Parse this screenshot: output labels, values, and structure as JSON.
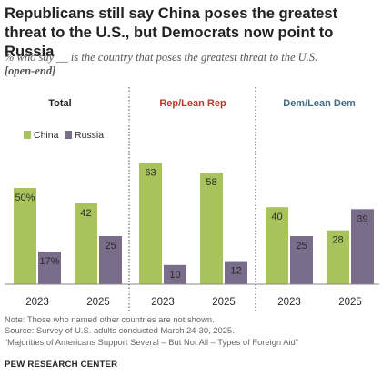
{
  "title": "Republicans still say China poses the greatest threat to the U.S., but Democrats now point to Russia",
  "subtitle": "% who say __ is the country that poses the greatest threat to the U.S.",
  "subtitle_note": "[open-end]",
  "chart_data": {
    "type": "bar",
    "ylim": [
      0,
      70
    ],
    "legend": {
      "position": "top-left of first panel",
      "entries": [
        "China",
        "Russia"
      ]
    },
    "series_colors": {
      "China": "#a8c35b",
      "Russia": "#7a6d8c"
    },
    "panels": [
      {
        "title": "Total",
        "title_color": "#222222",
        "categories": [
          "2023",
          "2025"
        ],
        "series": [
          {
            "name": "China",
            "values": [
              50,
              42
            ],
            "labels": [
              "50%",
              "42"
            ]
          },
          {
            "name": "Russia",
            "values": [
              17,
              25
            ],
            "labels": [
              "17%",
              "25"
            ]
          }
        ]
      },
      {
        "title": "Rep/Lean Rep",
        "title_color": "#b23a2e",
        "categories": [
          "2023",
          "2025"
        ],
        "series": [
          {
            "name": "China",
            "values": [
              63,
              58
            ],
            "labels": [
              "63",
              "58"
            ]
          },
          {
            "name": "Russia",
            "values": [
              10,
              12
            ],
            "labels": [
              "10",
              "12"
            ]
          }
        ]
      },
      {
        "title": "Dem/Lean Dem",
        "title_color": "#3f6b87",
        "categories": [
          "2023",
          "2025"
        ],
        "series": [
          {
            "name": "China",
            "values": [
              40,
              28
            ],
            "labels": [
              "40",
              "28"
            ]
          },
          {
            "name": "Russia",
            "values": [
              25,
              39
            ],
            "labels": [
              "25",
              "39"
            ]
          }
        ]
      }
    ]
  },
  "notes": [
    "Note: Those who named other countries are not shown.",
    "Source: Survey of U.S. adults conducted March 24-30, 2025.",
    "“Majorities of Americans Support Several – But Not All – Types of Foreign Aid”"
  ],
  "source_org": "PEW RESEARCH CENTER"
}
